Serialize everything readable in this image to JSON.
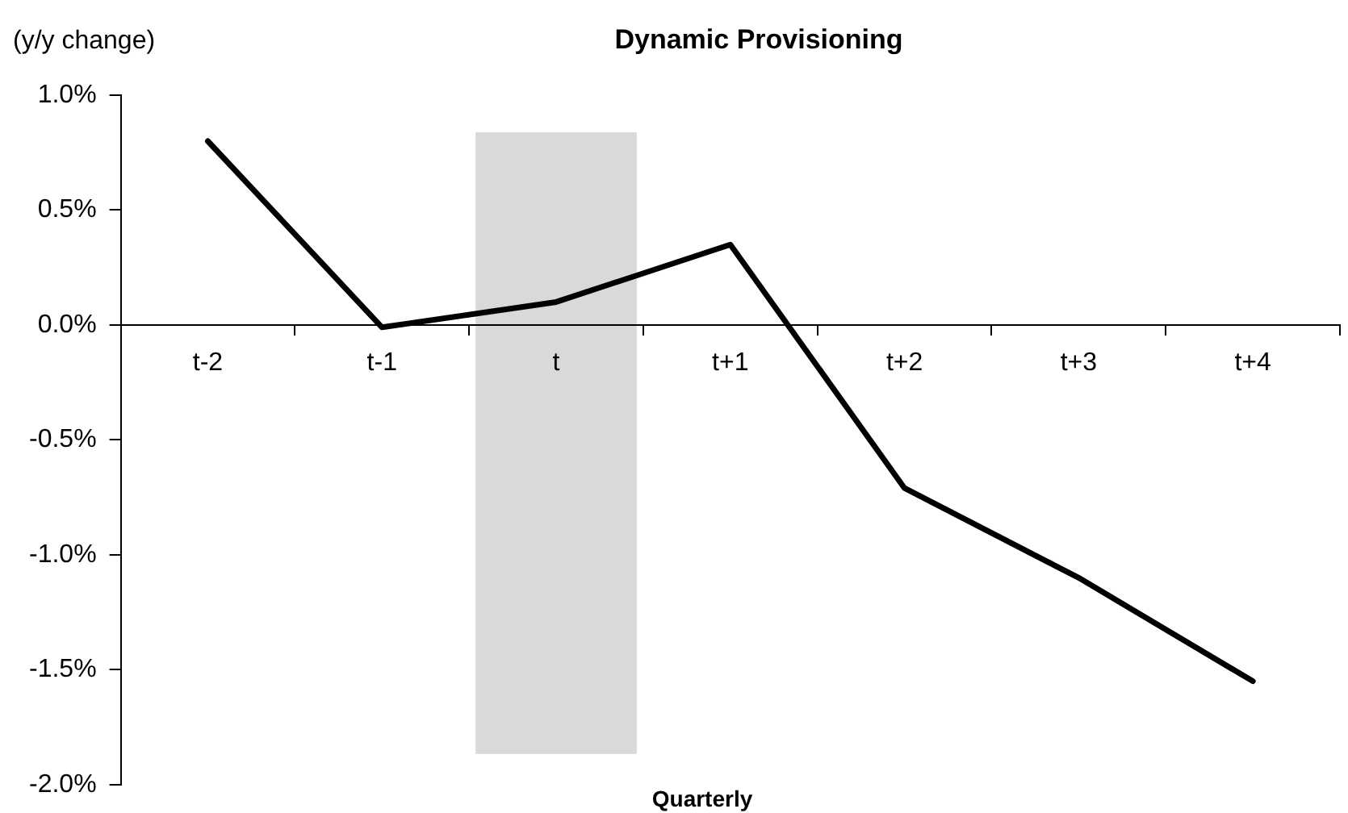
{
  "chart_data": {
    "type": "line",
    "title": "Dynamic Provisioning",
    "xlabel": "Quarterly",
    "ylabel": "(y/y change)",
    "categories": [
      "t-2",
      "t-1",
      "t",
      "t+1",
      "t+2",
      "t+3",
      "t+4"
    ],
    "series": [
      {
        "color": "#000000",
        "values": [
          0.8,
          -0.01,
          0.1,
          0.35,
          -0.71,
          -1.1,
          -1.55
        ]
      }
    ],
    "ylim": [
      -2.0,
      1.0
    ],
    "yticks": [
      {
        "value": -2.0,
        "label": "-2.0%"
      },
      {
        "value": -1.5,
        "label": "-1.5%"
      },
      {
        "value": -1.0,
        "label": "-1.0%"
      },
      {
        "value": -0.5,
        "label": "-0.5%"
      },
      {
        "value": 0,
        "label": "0.0%"
      },
      {
        "value": 0.5,
        "label": "0.5%"
      },
      {
        "value": 1.0,
        "label": "1.0%"
      }
    ],
    "bands": [
      {
        "axis": "x",
        "from": "t",
        "to": "t",
        "color": "#d9d9d9"
      }
    ],
    "grid": false,
    "legend": false,
    "marker": "none",
    "line_style": "solid"
  }
}
